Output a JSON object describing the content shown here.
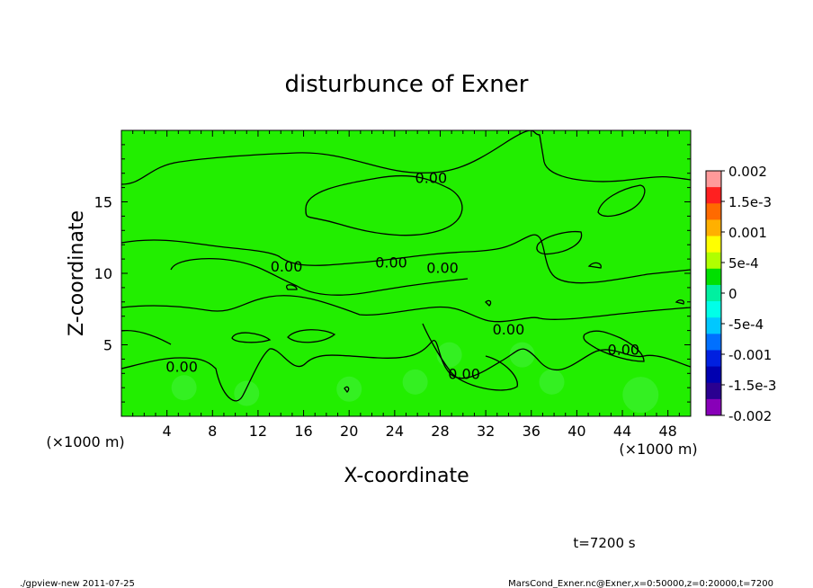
{
  "chart_data": {
    "type": "heatmap",
    "title": "disturbunce of Exner",
    "xlabel": "X-coordinate",
    "ylabel": "Z-coordinate",
    "x_unit": "(×1000 m)",
    "y_unit": "(×1000 m)",
    "xlim": [
      0,
      50
    ],
    "ylim": [
      0,
      20
    ],
    "x_ticks": [
      4,
      8,
      12,
      16,
      20,
      24,
      28,
      32,
      36,
      40,
      44,
      48
    ],
    "y_ticks": [
      5,
      10,
      15
    ],
    "contour_labels": [
      {
        "text": "0.00",
        "x": 27.2,
        "y": 16.7
      },
      {
        "text": "0.00",
        "x": 14.5,
        "y": 10.5
      },
      {
        "text": "0.00",
        "x": 23.7,
        "y": 10.8
      },
      {
        "text": "0.00",
        "x": 28.2,
        "y": 10.4
      },
      {
        "text": "0.00",
        "x": 34.0,
        "y": 6.1
      },
      {
        "text": "0.00",
        "x": 44.1,
        "y": 4.7
      },
      {
        "text": "0.00",
        "x": 5.3,
        "y": 3.5
      },
      {
        "text": "0.00",
        "x": 30.1,
        "y": 3.0
      }
    ],
    "colorbar": {
      "labels": [
        "0.002",
        "1.5e-3",
        "0.001",
        "5e-4",
        "0",
        "-5e-4",
        "-0.001",
        "-1.5e-3",
        "-0.002"
      ],
      "colors": [
        "#ff9a9a",
        "#ff2020",
        "#ff6a00",
        "#ffb000",
        "#ffff00",
        "#b0ff00",
        "#00e000",
        "#00f0a0",
        "#00ffe8",
        "#00c8ff",
        "#0070ff",
        "#0020e0",
        "#0000b0",
        "#2a0090",
        "#8800b8"
      ]
    },
    "field_color": "#22ee00"
  },
  "footer": {
    "time": "t=7200 s",
    "left": "./gpview-new  2011-07-25",
    "right": "MarsCond_Exner.nc@Exner,x=0:50000,z=0:20000,t=7200"
  }
}
